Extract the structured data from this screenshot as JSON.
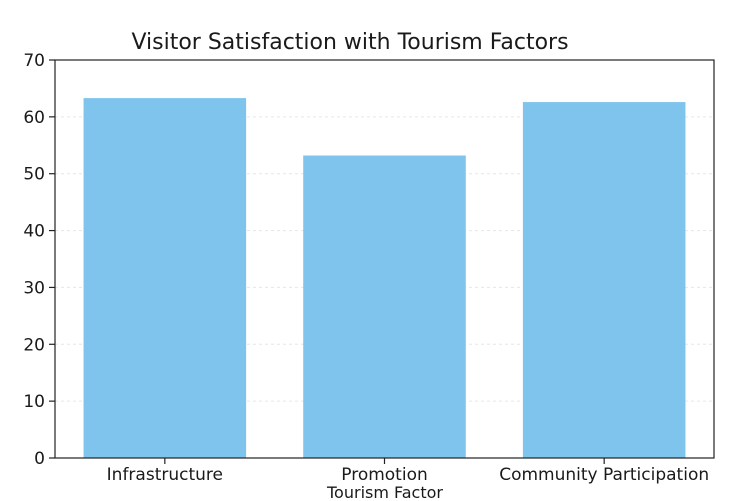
{
  "chart_data": {
    "type": "bar",
    "title": "Visitor Satisfaction with Tourism Factors",
    "xlabel": "Tourism Factor",
    "ylabel": "",
    "categories": [
      "Infrastructure",
      "Promotion",
      "Community Participation"
    ],
    "values": [
      63.3,
      53.2,
      62.6
    ],
    "ylim": [
      0,
      70
    ],
    "yticks": [
      0,
      10,
      20,
      30,
      40,
      50,
      60,
      70
    ],
    "grid": true,
    "legend": "none",
    "bar_color": "#7fc4ec"
  }
}
